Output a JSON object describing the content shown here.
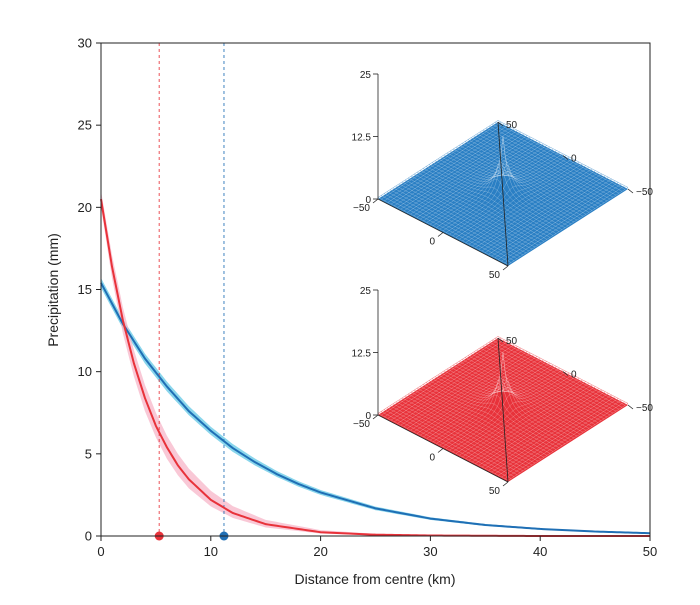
{
  "chart_data": {
    "type": "line",
    "title": "",
    "xlabel": "Distance from centre (km)",
    "ylabel": "Precipitation (mm)",
    "xlim": [
      0,
      50
    ],
    "ylim": [
      0,
      30
    ],
    "x_ticks": [
      0,
      10,
      20,
      30,
      40,
      50
    ],
    "y_ticks": [
      0,
      5,
      10,
      15,
      20,
      25,
      30
    ],
    "grid": false,
    "series": [
      {
        "color": "#1f6fb5",
        "band_color": "#63c8e6",
        "x": [
          0,
          2,
          4,
          6,
          8,
          10,
          12,
          14,
          16,
          18,
          20,
          25,
          30,
          35,
          40,
          45,
          50
        ],
        "y": [
          15.4,
          12.9,
          10.8,
          9.1,
          7.6,
          6.4,
          5.35,
          4.5,
          3.77,
          3.16,
          2.65,
          1.68,
          1.06,
          0.67,
          0.43,
          0.27,
          0.17
        ],
        "band_lower": [
          15.1,
          12.6,
          10.5,
          8.8,
          7.35,
          6.15,
          5.12,
          4.3,
          3.6,
          3.0,
          2.5,
          1.57,
          0.98,
          0.61,
          0.38,
          0.24,
          0.15
        ],
        "band_upper": [
          15.7,
          13.2,
          11.1,
          9.4,
          7.9,
          6.65,
          5.6,
          4.72,
          3.96,
          3.33,
          2.8,
          1.79,
          1.14,
          0.73,
          0.47,
          0.3,
          0.19
        ],
        "marker_x": 11.2
      },
      {
        "color": "#e8323a",
        "band_color": "#f7b6c8",
        "x": [
          0,
          1,
          2,
          3,
          4,
          5,
          6,
          7,
          8,
          10,
          12,
          15,
          20,
          25,
          30,
          40,
          50
        ],
        "y": [
          20.5,
          16.4,
          13.1,
          10.5,
          8.4,
          6.7,
          5.4,
          4.3,
          3.45,
          2.2,
          1.4,
          0.72,
          0.23,
          0.08,
          0.03,
          0.0,
          0.0
        ],
        "band_lower": [
          20.0,
          15.7,
          12.3,
          9.7,
          7.6,
          6.0,
          4.7,
          3.7,
          2.9,
          1.8,
          1.1,
          0.52,
          0.15,
          0.04,
          0.01,
          0.0,
          0.0
        ],
        "band_upper": [
          21.0,
          17.1,
          13.9,
          11.3,
          9.2,
          7.5,
          6.1,
          5.0,
          4.1,
          2.75,
          1.82,
          0.98,
          0.36,
          0.13,
          0.05,
          0.01,
          0.0
        ],
        "marker_x": 5.3
      }
    ],
    "insets": [
      {
        "color": "#2a7fc4",
        "z_ticks": [
          "0",
          "12.5",
          "25"
        ],
        "axis_ticks": [
          "−50",
          "0",
          "50"
        ],
        "far_ticks": [
          "50",
          "0",
          "−50"
        ]
      },
      {
        "color": "#e8323a",
        "z_ticks": [
          "0",
          "12.5",
          "25"
        ],
        "axis_ticks": [
          "−50",
          "0",
          "50"
        ],
        "far_ticks": [
          "50",
          "0",
          "−50"
        ]
      }
    ]
  }
}
